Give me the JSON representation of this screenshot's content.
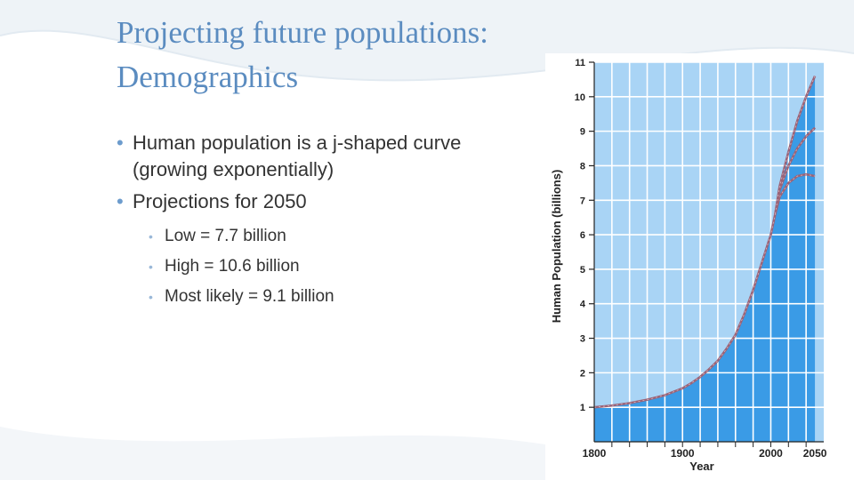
{
  "slide": {
    "title_line1": "Projecting future populations:",
    "title_line2": "Demographics",
    "bullets": [
      "Human population is a j-shaped curve (growing exponentially)",
      "Projections for 2050"
    ],
    "sub_bullets": [
      "Low = 7.7 billion",
      "High = 10.6 billion",
      "Most likely = 9.1 billion"
    ]
  },
  "colors": {
    "title": "#5b8cc0",
    "chart_bg": "#a9d4f5",
    "chart_fill": "#3a9be6",
    "grid": "#ffffff",
    "curve": "#9a6478"
  },
  "chart_data": {
    "type": "area",
    "xlabel": "Year",
    "ylabel": "Human Population (billions)",
    "xlim": [
      1800,
      2060
    ],
    "ylim": [
      0,
      11
    ],
    "x_ticks": [
      1800,
      1900,
      2000,
      2050
    ],
    "y_ticks": [
      1,
      2,
      3,
      4,
      5,
      6,
      7,
      8,
      9,
      10,
      11
    ],
    "grid": true,
    "series": [
      {
        "x": [
          1800,
          1820,
          1840,
          1860,
          1880,
          1900,
          1910,
          1920,
          1930,
          1940,
          1950,
          1960,
          1970,
          1980,
          1990,
          2000,
          2005
        ],
        "values": [
          1.0,
          1.05,
          1.12,
          1.22,
          1.35,
          1.55,
          1.7,
          1.88,
          2.1,
          2.35,
          2.7,
          3.1,
          3.7,
          4.4,
          5.2,
          6.0,
          6.6
        ]
      },
      {
        "x": [
          2005,
          2010,
          2020,
          2030,
          2040,
          2050
        ],
        "values": [
          6.6,
          7.1,
          7.5,
          7.7,
          7.75,
          7.7
        ]
      },
      {
        "x": [
          2005,
          2010,
          2020,
          2030,
          2040,
          2050
        ],
        "values": [
          6.6,
          7.3,
          8.0,
          8.5,
          8.85,
          9.1
        ]
      },
      {
        "x": [
          2005,
          2010,
          2020,
          2030,
          2040,
          2050
        ],
        "values": [
          6.6,
          7.4,
          8.4,
          9.3,
          10.0,
          10.6
        ]
      }
    ]
  }
}
